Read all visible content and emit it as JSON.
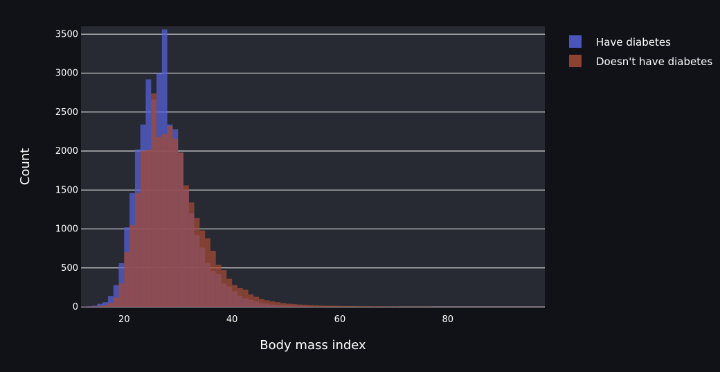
{
  "chart_data": {
    "type": "bar",
    "subtype": "overlaid-histogram",
    "title": "",
    "xlabel": "Body mass index",
    "ylabel": "Count",
    "xlim": [
      12,
      98
    ],
    "ylim": [
      0,
      3600
    ],
    "x_ticks": [
      20,
      40,
      60,
      80
    ],
    "y_ticks": [
      0,
      500,
      1000,
      1500,
      2000,
      2500,
      3000,
      3500
    ],
    "grid": {
      "x": false,
      "y": true
    },
    "legend_position": "top-right",
    "bin_width": 1,
    "bin_starts": [
      12,
      13,
      14,
      15,
      16,
      17,
      18,
      19,
      20,
      21,
      22,
      23,
      24,
      25,
      26,
      27,
      28,
      29,
      30,
      31,
      32,
      33,
      34,
      35,
      36,
      37,
      38,
      39,
      40,
      41,
      42,
      43,
      44,
      45,
      46,
      47,
      48,
      49,
      50,
      51,
      52,
      53,
      54,
      55,
      56,
      57,
      58,
      59,
      60,
      61,
      62,
      63,
      64,
      65,
      66,
      67,
      68,
      69,
      70,
      71,
      72,
      73,
      74,
      75,
      76,
      77,
      78,
      79,
      80,
      81,
      82,
      83,
      84,
      85,
      86,
      87,
      88,
      89,
      90,
      91,
      92,
      93,
      94,
      95,
      96,
      97
    ],
    "series": [
      {
        "name": "Have diabetes",
        "color": "#5561d8",
        "values": [
          5,
          8,
          15,
          40,
          60,
          140,
          280,
          560,
          1020,
          1460,
          2020,
          2340,
          2920,
          2660,
          3000,
          3560,
          2340,
          2280,
          1980,
          1500,
          1200,
          920,
          760,
          560,
          460,
          420,
          300,
          260,
          200,
          140,
          110,
          90,
          70,
          50,
          40,
          30,
          25,
          20,
          15,
          12,
          10,
          8,
          6,
          5,
          4,
          3,
          3,
          2,
          2,
          2,
          1,
          1,
          1,
          1,
          1,
          1,
          1,
          1,
          1,
          1,
          1,
          1,
          1,
          1,
          1,
          1,
          1,
          1,
          1,
          1,
          1,
          1,
          1,
          1,
          1,
          1,
          1,
          1,
          1,
          1,
          1,
          1,
          1,
          1,
          1,
          1
        ]
      },
      {
        "name": "Doesn't have diabetes",
        "color": "#a34a35",
        "values": [
          3,
          4,
          6,
          10,
          20,
          50,
          120,
          300,
          700,
          1050,
          1460,
          2000,
          2020,
          2740,
          2180,
          2220,
          2320,
          2160,
          1980,
          1560,
          1340,
          1140,
          980,
          880,
          720,
          540,
          470,
          360,
          280,
          240,
          220,
          160,
          130,
          100,
          85,
          70,
          60,
          48,
          40,
          35,
          30,
          28,
          24,
          20,
          18,
          15,
          14,
          12,
          10,
          9,
          8,
          7,
          6,
          6,
          5,
          5,
          4,
          4,
          4,
          3,
          3,
          3,
          3,
          3,
          3,
          2,
          2,
          2,
          2,
          2,
          2,
          2,
          2,
          2,
          2,
          2,
          2,
          2,
          2,
          2,
          2,
          2,
          2,
          2,
          2,
          2
        ]
      }
    ]
  }
}
